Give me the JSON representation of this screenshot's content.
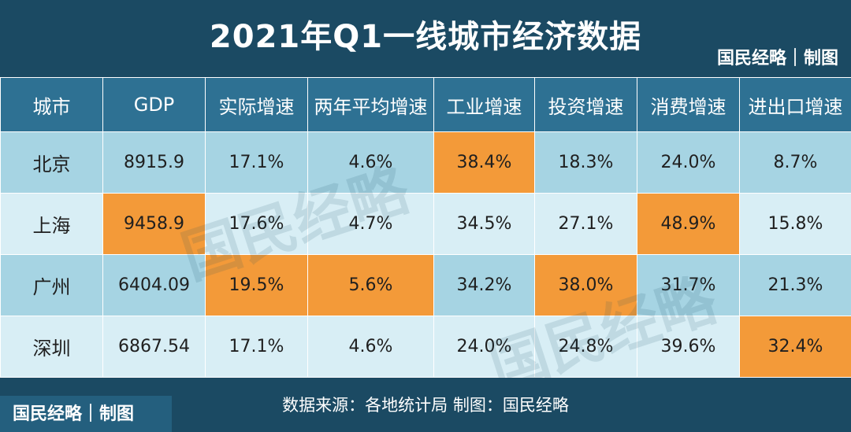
{
  "header": {
    "title": "2021年Q1一线城市经济数据",
    "brand": "国民经略｜制图"
  },
  "table": {
    "columns": [
      "城市",
      "GDP",
      "实际增速",
      "两年平均增速",
      "工业增速",
      "投资增速",
      "消费增速",
      "进出口增速"
    ],
    "rows": [
      {
        "cells": [
          "北京",
          "8915.9",
          "17.1%",
          "4.6%",
          "38.4%",
          "18.3%",
          "24.0%",
          "8.7%"
        ],
        "highlight": [
          4
        ]
      },
      {
        "cells": [
          "上海",
          "9458.9",
          "17.6%",
          "4.7%",
          "34.5%",
          "27.1%",
          "48.9%",
          "15.8%"
        ],
        "highlight": [
          1,
          6
        ]
      },
      {
        "cells": [
          "广州",
          "6404.09",
          "19.5%",
          "5.6%",
          "34.2%",
          "38.0%",
          "31.7%",
          "21.3%"
        ],
        "highlight": [
          2,
          3,
          5
        ]
      },
      {
        "cells": [
          "深圳",
          "6867.54",
          "17.1%",
          "4.6%",
          "24.0%",
          "24.8%",
          "39.6%",
          "32.4%"
        ],
        "highlight": [
          7
        ]
      }
    ]
  },
  "watermark": "国民经略",
  "footer": {
    "source": "数据来源：各地统计局 制图：国民经略",
    "brand": "国民经略｜制图"
  },
  "colors": {
    "header_bg": "#1b4a63",
    "column_header_bg": "#2e7193",
    "row_dark": "#a6d4e3",
    "row_light": "#d8eef5",
    "highlight": "#f39a39"
  }
}
